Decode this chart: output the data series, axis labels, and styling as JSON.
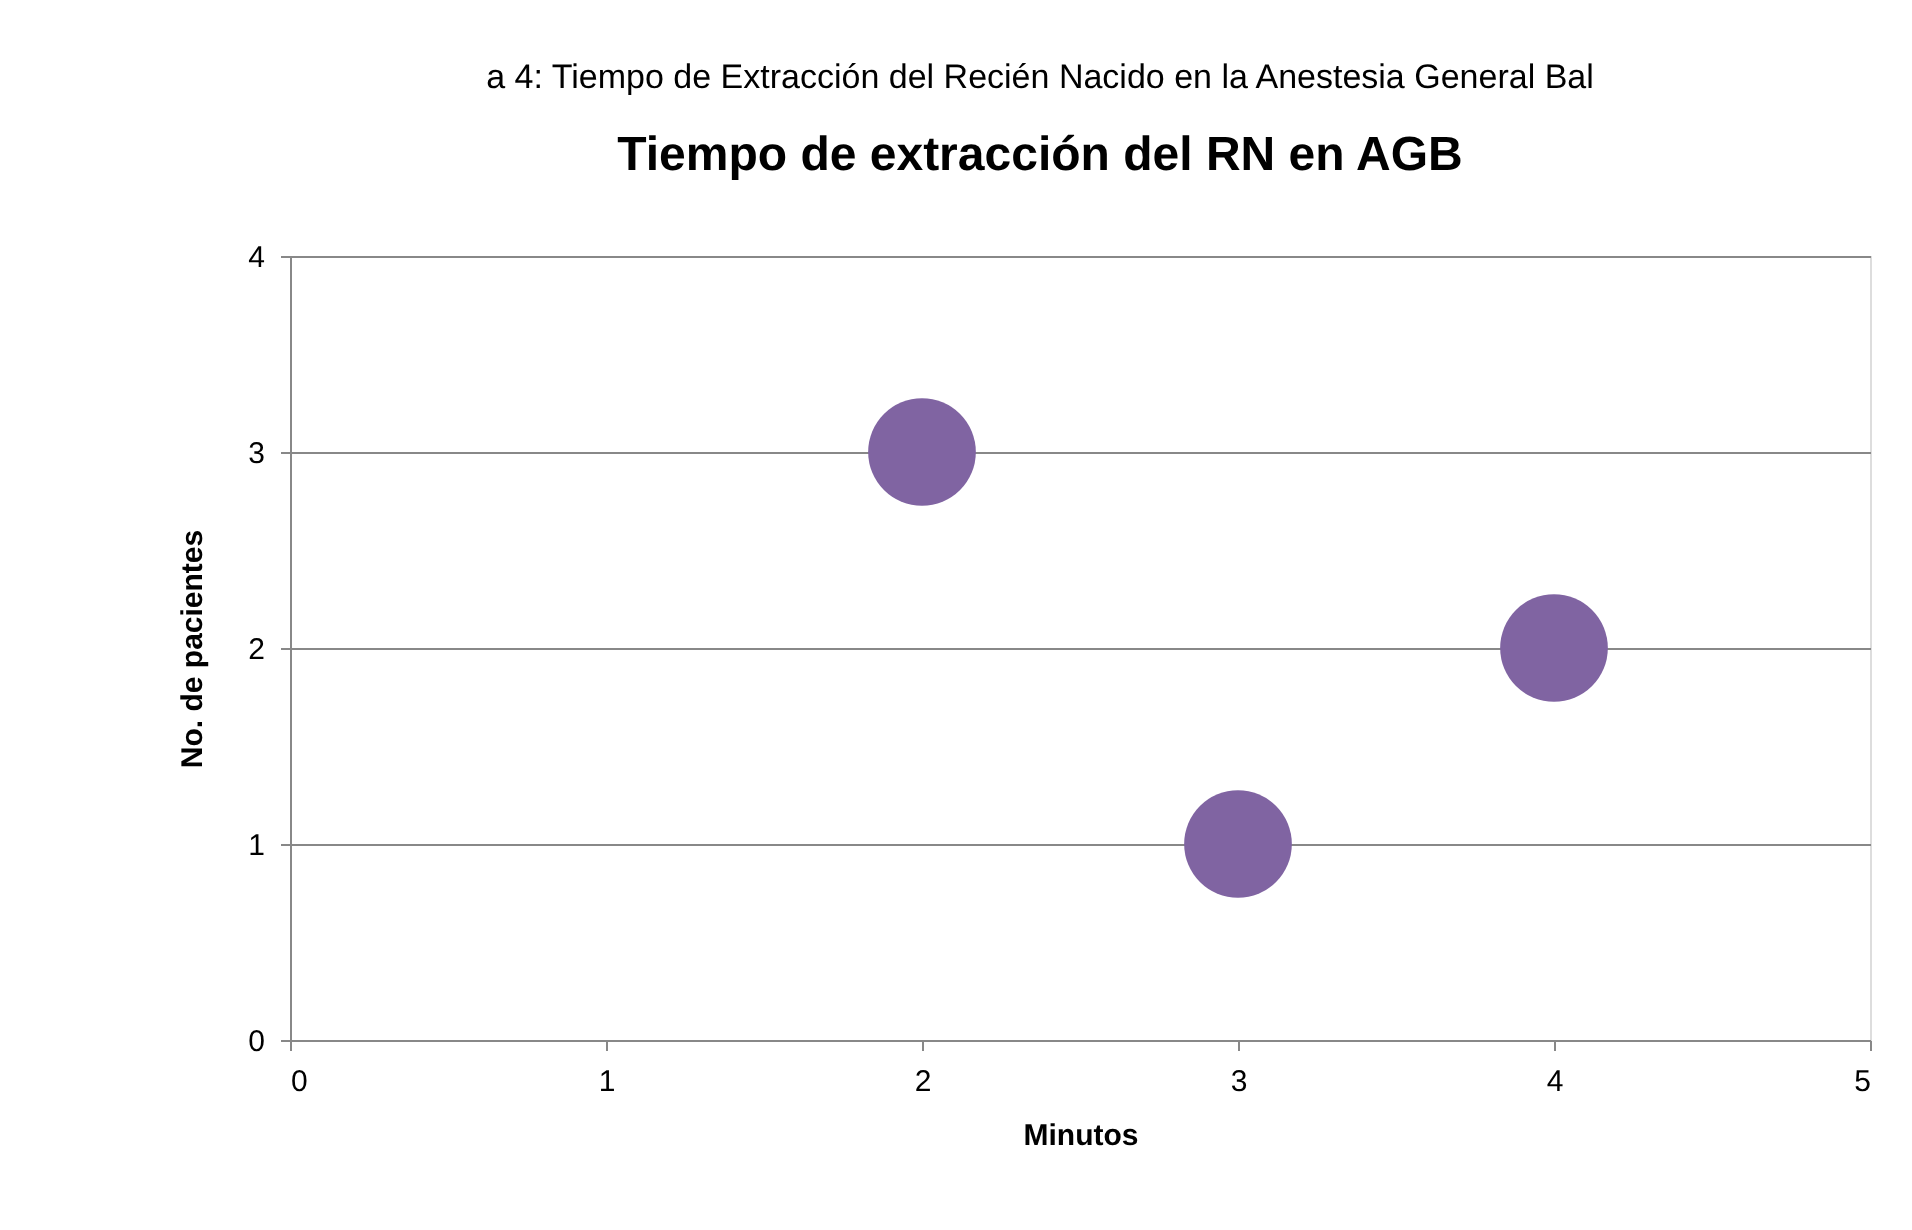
{
  "chart_data": {
    "type": "scatter",
    "title": "Tiempo de extracción del RN en AGB",
    "annotations": [
      "a 4: Tiempo de Extracción del Recién Nacido en la Anestesia General Bal"
    ],
    "xlabel": "Minutos",
    "ylabel": "No. de pacientes",
    "x": [
      2,
      3,
      4
    ],
    "values": [
      3,
      1,
      2
    ],
    "color": "#8064a2",
    "xlim": [
      0,
      5
    ],
    "xticks": [
      0,
      1,
      2,
      3,
      4,
      5
    ],
    "ylim": [
      0,
      4
    ],
    "yticks": [
      0,
      1,
      2,
      3,
      4
    ],
    "grid": "y"
  }
}
